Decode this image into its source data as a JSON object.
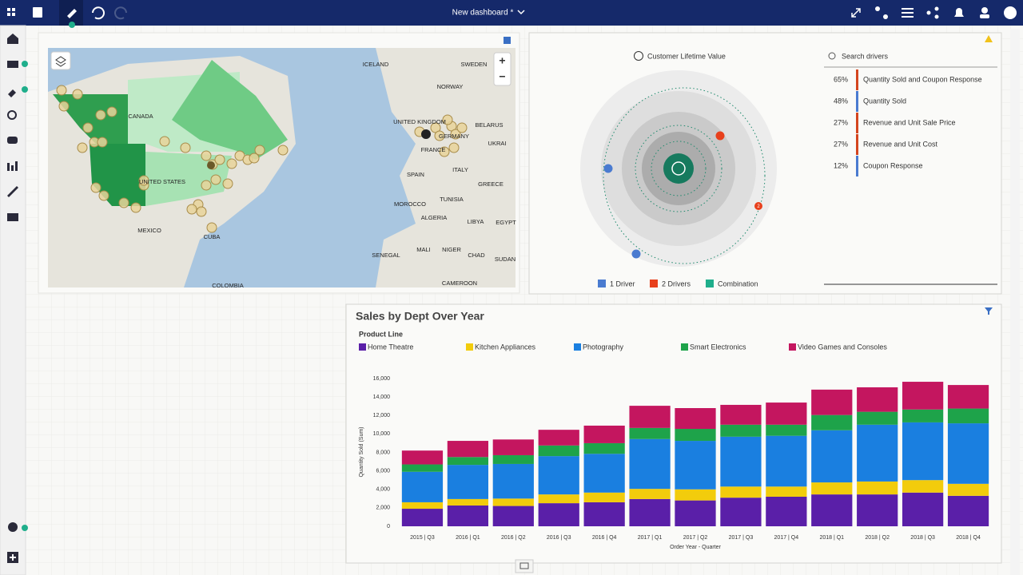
{
  "header": {
    "title": "New dashboard *"
  },
  "map": {
    "zoom_in": "+",
    "zoom_out": "−",
    "labels": [
      "ICELAND",
      "SWEDEN",
      "NORWAY",
      "CANADA",
      "UNITED KINGDOM",
      "BELARUS",
      "GERMANY",
      "UKRAI",
      "FRANCE",
      "SPAIN",
      "ITALY",
      "GREECE",
      "UNITED STATES",
      "TUNISIA",
      "MOROCCO",
      "ALGERIA",
      "LIBYA",
      "EGYPT",
      "MEXICO",
      "CUBA",
      "SENEGAL",
      "MALI",
      "NIGER",
      "CHAD",
      "SUDAN",
      "CAMEROON",
      "COLOMBIA"
    ]
  },
  "drivers": {
    "title": "Customer Lifetime Value",
    "search": "Search drivers",
    "badge": "2",
    "items": [
      {
        "pct": "65%",
        "name": "Quantity Sold and Coupon Response",
        "color": "#d4451f"
      },
      {
        "pct": "48%",
        "name": "Quantity Sold",
        "color": "#4a7bd0"
      },
      {
        "pct": "27%",
        "name": "Revenue and Unit Sale Price",
        "color": "#d4451f"
      },
      {
        "pct": "27%",
        "name": "Revenue and Unit Cost",
        "color": "#d4451f"
      },
      {
        "pct": "12%",
        "name": "Coupon Response",
        "color": "#4a7bd0"
      }
    ],
    "legend": [
      {
        "name": "1 Driver",
        "color": "#4a7bd0"
      },
      {
        "name": "2 Drivers",
        "color": "#e8401c"
      },
      {
        "name": "Combination",
        "color": "#1fae8b"
      }
    ]
  },
  "chart_data": {
    "type": "stacked_bar",
    "title": "Sales by Dept Over Year",
    "legend_title": "Product Line",
    "y_label": "Quantity Sold (Sum)",
    "x_label": "Order Year - Quarter",
    "categories": [
      "2015 | Q3",
      "2016 | Q1",
      "2016 | Q2",
      "2016 | Q3",
      "2016 | Q4",
      "2017 | Q1",
      "2017 | Q2",
      "2017 | Q3",
      "2017 | Q4",
      "2018 | Q1",
      "2018 | Q2",
      "2018 | Q3",
      "2018 | Q4"
    ],
    "series": [
      {
        "name": "Home Theatre",
        "color": "#5a1fa8",
        "values": [
          1900,
          2250,
          2200,
          2500,
          2600,
          2950,
          2800,
          3100,
          3200,
          3450,
          3450,
          3650,
          3300
        ]
      },
      {
        "name": "Kitchen Appliances",
        "color": "#f2cc0c",
        "values": [
          700,
          700,
          800,
          950,
          1050,
          1100,
          1200,
          1200,
          1100,
          1300,
          1400,
          1350,
          1300
        ]
      },
      {
        "name": "Photography",
        "color": "#1a7fe0",
        "values": [
          3300,
          3700,
          3750,
          4150,
          4200,
          5400,
          5250,
          5400,
          5500,
          5650,
          6150,
          6250,
          6550
        ]
      },
      {
        "name": "Smart Electronics",
        "color": "#1ea34a",
        "values": [
          800,
          850,
          950,
          1150,
          1150,
          1200,
          1300,
          1300,
          1200,
          1650,
          1400,
          1400,
          1600
        ]
      },
      {
        "name": "Video Games and Consoles",
        "color": "#c4165f",
        "values": [
          1500,
          1750,
          1700,
          1700,
          1900,
          2400,
          2250,
          2150,
          2400,
          2750,
          2650,
          3000,
          2550
        ]
      }
    ],
    "ylim": [
      0,
      16000
    ],
    "yticks": [
      0,
      {
        "value": 2000,
        "label": "2,000"
      },
      {
        "value": 4000,
        "label": "4,000"
      },
      {
        "value": 6000,
        "label": "6,000"
      },
      {
        "value": 8000,
        "label": "8,000"
      },
      {
        "value": 10000,
        "label": "10,000"
      },
      {
        "value": 12000,
        "label": "12,000"
      },
      {
        "value": 14000,
        "label": "14,000"
      },
      {
        "value": 16000,
        "label": "16,000"
      }
    ]
  }
}
